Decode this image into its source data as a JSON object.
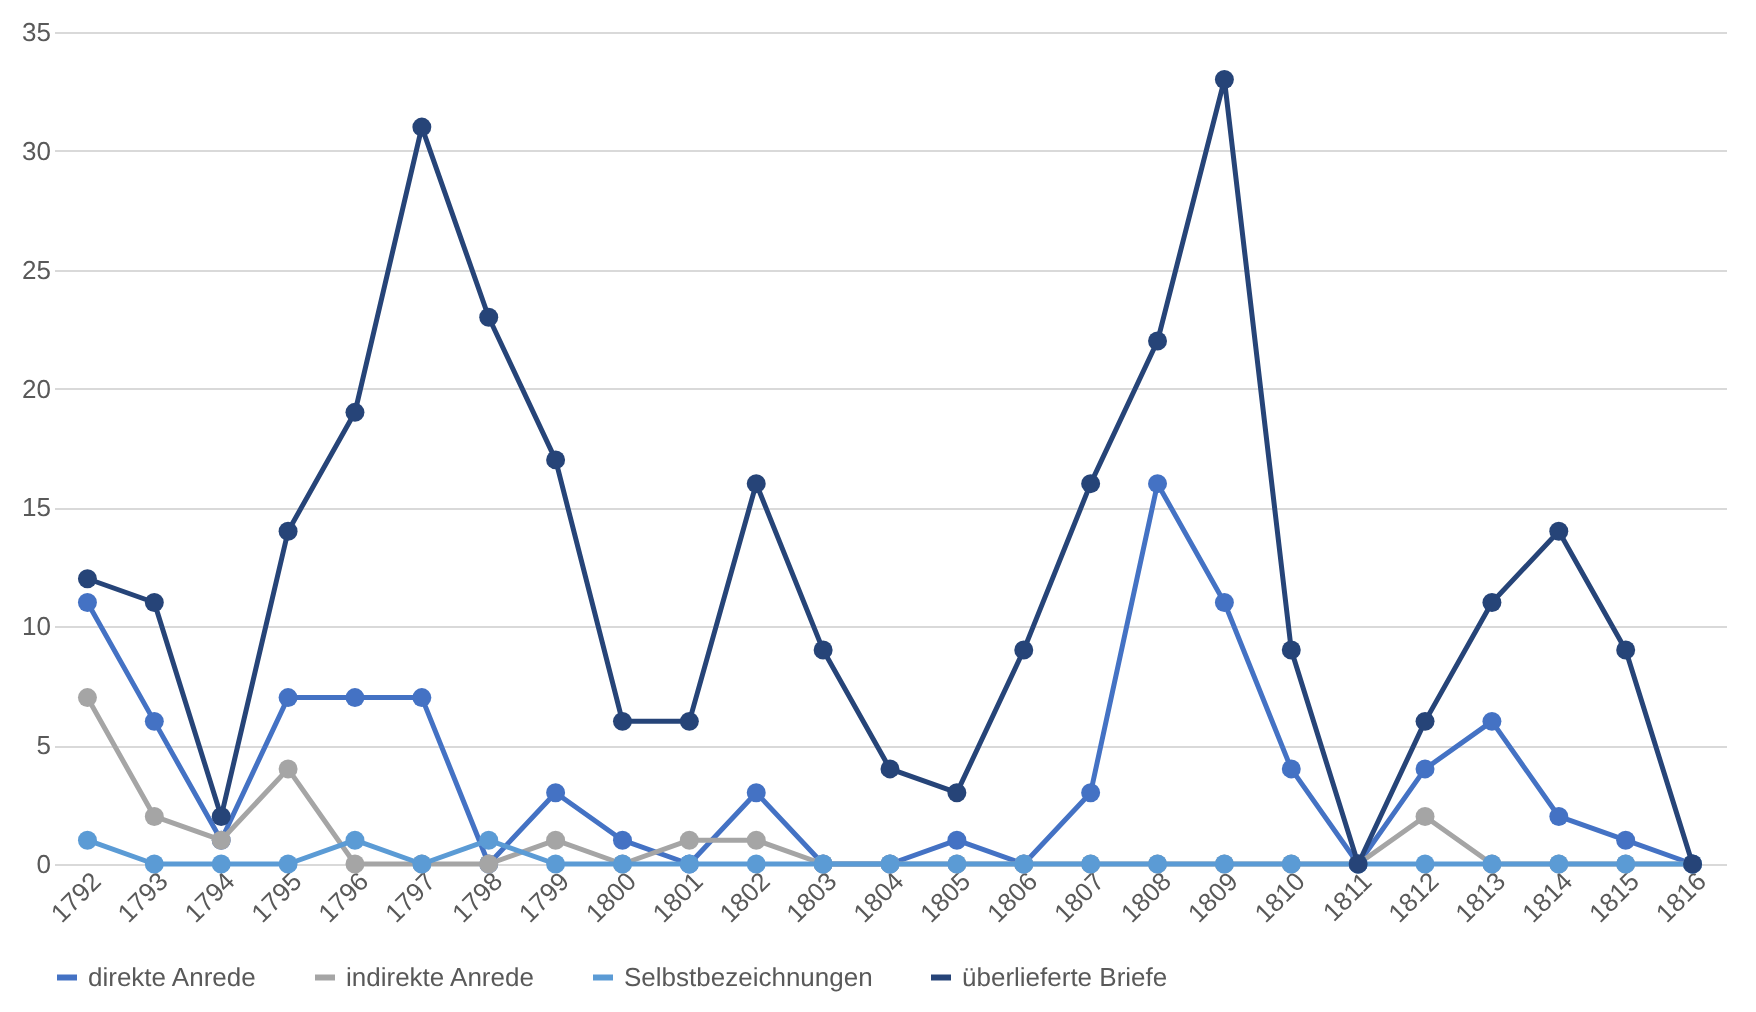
{
  "chart_data": {
    "type": "line",
    "categories": [
      "1792",
      "1793",
      "1794",
      "1795",
      "1796",
      "1797",
      "1798",
      "1799",
      "1800",
      "1801",
      "1802",
      "1803",
      "1804",
      "1805",
      "1806",
      "1807",
      "1808",
      "1809",
      "1810",
      "1811",
      "1812",
      "1813",
      "1814",
      "1815",
      "1816"
    ],
    "series": [
      {
        "name": "direkte Anrede",
        "color": "#4472c4",
        "values": [
          11,
          6,
          1,
          7,
          7,
          7,
          0,
          3,
          1,
          0,
          3,
          0,
          0,
          1,
          0,
          3,
          16,
          11,
          4,
          0,
          4,
          6,
          2,
          1,
          0
        ]
      },
      {
        "name": "indirekte Anrede",
        "color": "#a5a5a5",
        "values": [
          7,
          2,
          1,
          4,
          0,
          0,
          0,
          1,
          0,
          1,
          1,
          0,
          0,
          0,
          0,
          0,
          0,
          0,
          0,
          0,
          2,
          0,
          0,
          0,
          0
        ]
      },
      {
        "name": "Selbstbezeichnungen",
        "color": "#5b9bd5",
        "values": [
          1,
          0,
          0,
          0,
          1,
          0,
          1,
          0,
          0,
          0,
          0,
          0,
          0,
          0,
          0,
          0,
          0,
          0,
          0,
          0,
          0,
          0,
          0,
          0,
          0
        ]
      },
      {
        "name": "überlieferte Briefe",
        "color": "#264478",
        "values": [
          12,
          11,
          2,
          14,
          19,
          31,
          23,
          17,
          6,
          6,
          16,
          9,
          4,
          3,
          9,
          16,
          22,
          33,
          9,
          0,
          6,
          11,
          14,
          9,
          0
        ]
      }
    ],
    "ylim": [
      0,
      35
    ],
    "yticks": [
      0,
      5,
      10,
      15,
      20,
      25,
      30,
      35
    ],
    "grid": "y",
    "legend": "bottom",
    "marker": "circle",
    "line_style": "solid"
  }
}
